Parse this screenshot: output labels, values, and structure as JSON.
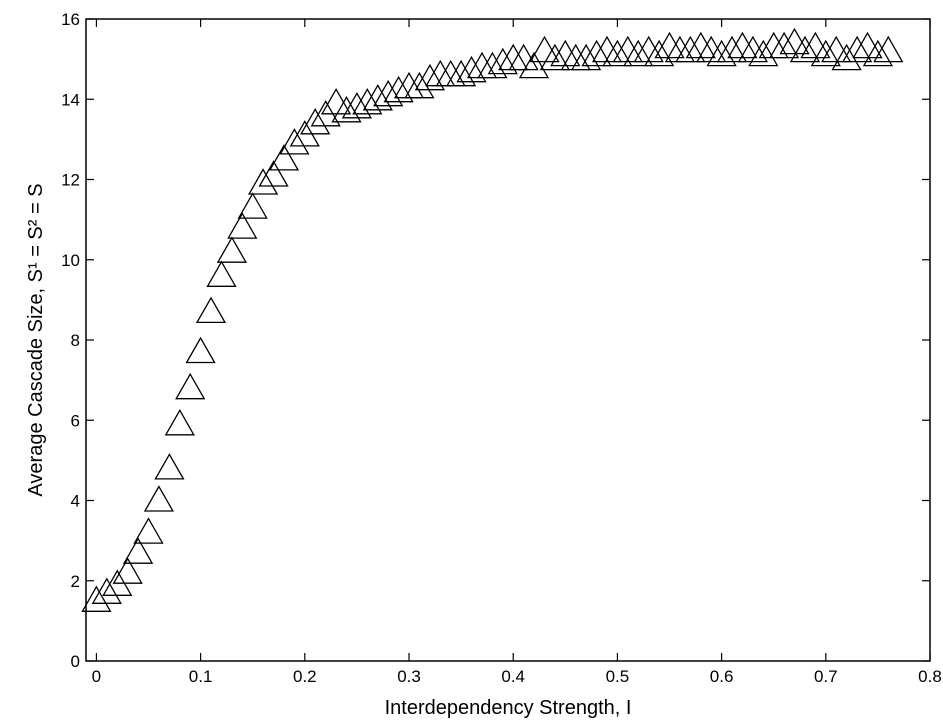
{
  "chart_data": {
    "type": "scatter",
    "xlabel": "Interdependency Strength, I",
    "ylabel": "Average Cascade Size, S¹ = S² = S",
    "xlim": [
      -0.01,
      0.8
    ],
    "ylim": [
      0,
      16
    ],
    "xticks": [
      0,
      0.1,
      0.2,
      0.3,
      0.4,
      0.5,
      0.6,
      0.7,
      0.8
    ],
    "xtick_labels": [
      "0",
      "0.1",
      "0.2",
      "0.3",
      "0.4",
      "0.5",
      "0.6",
      "0.7",
      "0.8"
    ],
    "yticks": [
      0,
      2,
      4,
      6,
      8,
      10,
      12,
      14,
      16
    ],
    "ytick_labels": [
      "0",
      "2",
      "4",
      "6",
      "8",
      "10",
      "12",
      "14",
      "16"
    ],
    "grid": false,
    "legend": null,
    "marker": "open-triangle",
    "series": [
      {
        "x": [
          0,
          0.01,
          0.02,
          0.03,
          0.04,
          0.05,
          0.06,
          0.07,
          0.08,
          0.09,
          0.1,
          0.11,
          0.12,
          0.13,
          0.14,
          0.15,
          0.16,
          0.17,
          0.18,
          0.19,
          0.2,
          0.21,
          0.22,
          0.23,
          0.24,
          0.25,
          0.26,
          0.27,
          0.28,
          0.29,
          0.3,
          0.31,
          0.32,
          0.33,
          0.34,
          0.35,
          0.36,
          0.37,
          0.38,
          0.39,
          0.4,
          0.41,
          0.42,
          0.43,
          0.44,
          0.45,
          0.46,
          0.47,
          0.48,
          0.49,
          0.5,
          0.51,
          0.52,
          0.53,
          0.54,
          0.55,
          0.56,
          0.57,
          0.58,
          0.59,
          0.6,
          0.61,
          0.62,
          0.63,
          0.64,
          0.65,
          0.66,
          0.67,
          0.68,
          0.69,
          0.7,
          0.71,
          0.72,
          0.73,
          0.74,
          0.75,
          0.76
        ],
        "y": [
          1.5,
          1.7,
          1.9,
          2.2,
          2.7,
          3.2,
          4.0,
          4.8,
          5.9,
          6.8,
          7.7,
          8.7,
          9.6,
          10.2,
          10.8,
          11.3,
          11.9,
          12.1,
          12.5,
          12.9,
          13.1,
          13.4,
          13.6,
          13.9,
          13.7,
          13.8,
          13.9,
          14.0,
          14.1,
          14.2,
          14.3,
          14.3,
          14.5,
          14.6,
          14.6,
          14.6,
          14.7,
          14.8,
          14.8,
          14.9,
          15.0,
          15.0,
          14.8,
          15.2,
          15.0,
          15.1,
          15.0,
          15.0,
          15.1,
          15.2,
          15.1,
          15.2,
          15.1,
          15.2,
          15.1,
          15.3,
          15.2,
          15.2,
          15.3,
          15.2,
          15.1,
          15.2,
          15.3,
          15.2,
          15.1,
          15.3,
          15.3,
          15.4,
          15.2,
          15.3,
          15.1,
          15.2,
          15.0,
          15.2,
          15.3,
          15.1,
          15.2
        ]
      }
    ]
  }
}
